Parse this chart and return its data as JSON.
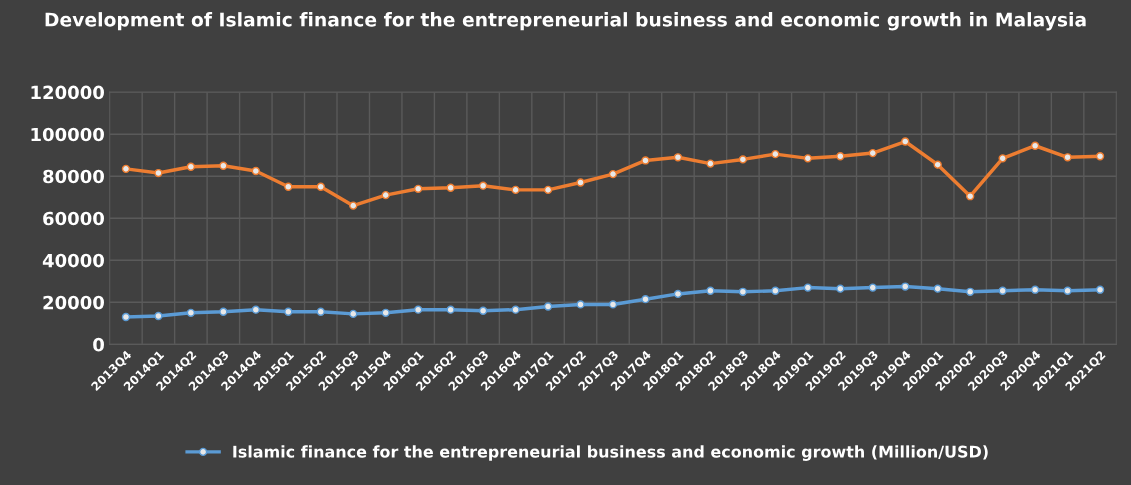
{
  "chart_data": {
    "type": "line",
    "title": "Development of Islamic finance for the entrepreneurial business and economic growth in Malaysia",
    "categories": [
      "2013Q4",
      "2014Q1",
      "2014Q2",
      "2014Q3",
      "2014Q4",
      "2015Q1",
      "2015Q2",
      "2015Q3",
      "2015Q4",
      "2016Q1",
      "2016Q2",
      "2016Q3",
      "2016Q4",
      "2017Q1",
      "2017Q2",
      "2017Q3",
      "2017Q4",
      "2018Q1",
      "2018Q2",
      "2018Q3",
      "2018Q4",
      "2019Q1",
      "2019Q2",
      "2019Q3",
      "2019Q4",
      "2020Q1",
      "2020Q2",
      "2020Q3",
      "2020Q4",
      "2021Q1",
      "2021Q2"
    ],
    "series": [
      {
        "name": "Islamic finance for the entrepreneurial business and economic growth (Million/USD)",
        "color": "#5b9bd5",
        "values": [
          13000,
          13500,
          15000,
          15500,
          16500,
          15500,
          15500,
          14500,
          15000,
          16500,
          16500,
          16000,
          16500,
          18000,
          19000,
          19000,
          21500,
          24000,
          25500,
          25000,
          25500,
          27000,
          26500,
          27000,
          27500,
          26500,
          25000,
          25500,
          26000,
          25500,
          26000
        ]
      },
      {
        "color": "#ed7d31",
        "values": [
          83500,
          81500,
          84500,
          85000,
          82500,
          75000,
          75000,
          66000,
          71000,
          74000,
          74500,
          75500,
          73500,
          73500,
          77000,
          81000,
          87500,
          89000,
          86000,
          88000,
          90500,
          88500,
          89500,
          91000,
          96500,
          85500,
          70500,
          88500,
          94500,
          89000,
          89500
        ]
      }
    ],
    "ylim": [
      0,
      120000
    ],
    "yticks": [
      0,
      20000,
      40000,
      60000,
      80000,
      100000,
      120000
    ],
    "grid": true,
    "legend": "bottom",
    "marker": "circle",
    "line_style": "solid"
  }
}
